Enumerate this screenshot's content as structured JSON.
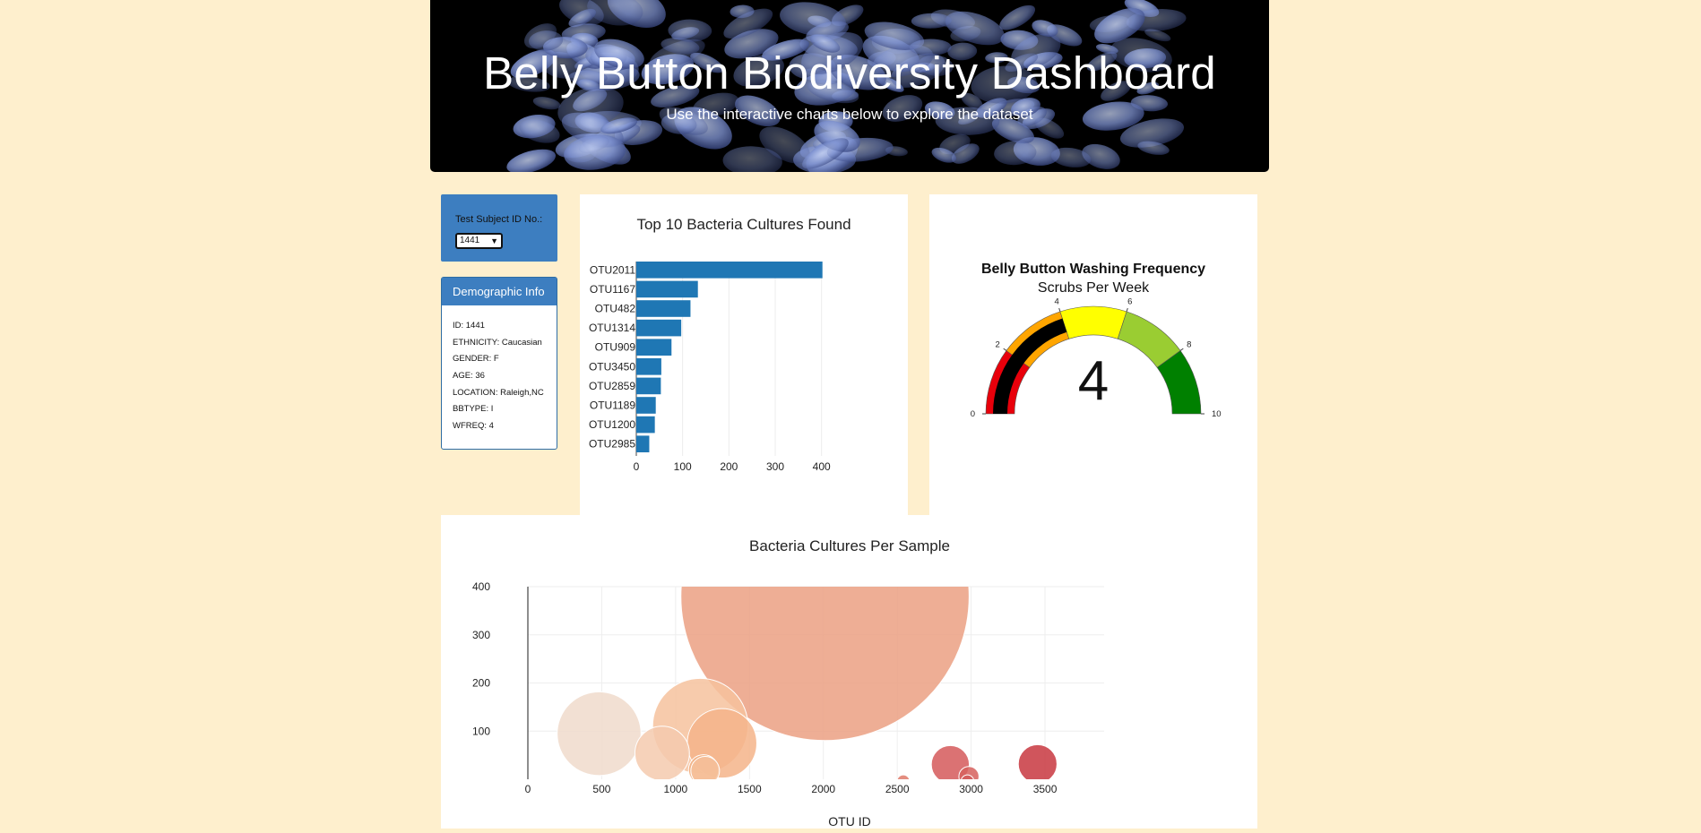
{
  "header": {
    "title": "Belly Button Biodiversity Dashboard",
    "subtitle": "Use the interactive charts below to explore the dataset"
  },
  "selector": {
    "label": "Test Subject ID No.:",
    "value": "1441"
  },
  "demographics": {
    "heading": "Demographic Info",
    "items": [
      "ID: 1441",
      "ETHNICITY: Caucasian",
      "GENDER: F",
      "AGE: 36",
      "LOCATION: Raleigh,NC",
      "BBTYPE: I",
      "WFREQ: 4"
    ]
  },
  "colors": {
    "page_bg": "#FEEFCD",
    "bar": "#1F77B4",
    "panel": "#3D7EC0"
  },
  "chart_data": [
    {
      "type": "bar",
      "orientation": "horizontal",
      "title": "Top 10 Bacteria Cultures Found",
      "categories": [
        "OTU2011",
        "OTU1167",
        "OTU482",
        "OTU1314",
        "OTU909",
        "OTU3450",
        "OTU2859",
        "OTU1189",
        "OTU1200",
        "OTU2985"
      ],
      "values": [
        402,
        133,
        117,
        97,
        76,
        54,
        53,
        42,
        40,
        28
      ],
      "xticks": [
        0,
        100,
        200,
        300,
        400
      ],
      "xlim": [
        0,
        420
      ]
    },
    {
      "type": "gauge",
      "title": "Belly Button Washing Frequency",
      "subtitle": "Scrubs Per Week",
      "value": 4,
      "range": [
        0,
        10
      ],
      "ticks": [
        0,
        2,
        4,
        6,
        8,
        10
      ],
      "steps": [
        {
          "range": [
            0,
            2
          ],
          "color": "#E8000B"
        },
        {
          "range": [
            2,
            4
          ],
          "color": "#FFA500"
        },
        {
          "range": [
            4,
            6
          ],
          "color": "#FFFF00"
        },
        {
          "range": [
            6,
            8
          ],
          "color": "#9ACD32"
        },
        {
          "range": [
            8,
            10
          ],
          "color": "#008000"
        }
      ],
      "bar_color": "#000000"
    },
    {
      "type": "scatter",
      "mode": "bubble",
      "title": "Bacteria Cultures Per Sample",
      "xlabel": "OTU ID",
      "ylabel": "",
      "xlim": [
        0,
        3900
      ],
      "ylim": [
        0,
        400
      ],
      "xticks": [
        0,
        500,
        1000,
        1500,
        2000,
        2500,
        3000,
        3500
      ],
      "yticks": [
        100,
        200,
        300,
        400
      ],
      "points": [
        {
          "x": 2011,
          "y": 402,
          "color": "#EBA083"
        },
        {
          "x": 1167,
          "y": 133,
          "color": "#F6C29E"
        },
        {
          "x": 482,
          "y": 117,
          "color": "#F0DACB"
        },
        {
          "x": 1314,
          "y": 97,
          "color": "#F4B489"
        },
        {
          "x": 909,
          "y": 76,
          "color": "#F4CAAE"
        },
        {
          "x": 3450,
          "y": 54,
          "color": "#C8373F"
        },
        {
          "x": 2859,
          "y": 53,
          "color": "#D5595A"
        },
        {
          "x": 1189,
          "y": 42,
          "color": "#F1B083"
        },
        {
          "x": 1200,
          "y": 40,
          "color": "#F6C19B"
        },
        {
          "x": 2985,
          "y": 28,
          "color": "#D6605D"
        },
        {
          "x": 2975,
          "y": 18,
          "color": "#D25A5A"
        },
        {
          "x": 2541,
          "y": 18,
          "color": "#DF7A6A"
        },
        {
          "x": 3642,
          "y": 7,
          "color": "#C53340"
        },
        {
          "x": 1210,
          "y": 8,
          "color": "#F5C29C"
        },
        {
          "x": 1108,
          "y": 7,
          "color": "#F5C09B"
        },
        {
          "x": 1340,
          "y": 6,
          "color": "#F3B68D"
        },
        {
          "x": 2761,
          "y": 6,
          "color": "#D9625D"
        },
        {
          "x": 2733,
          "y": 5,
          "color": "#D9625D"
        },
        {
          "x": 2421,
          "y": 4,
          "color": "#E07F6F"
        },
        {
          "x": 2330,
          "y": 3,
          "color": "#E3856F"
        },
        {
          "x": 2914,
          "y": 3,
          "color": "#D6605D"
        },
        {
          "x": 1980,
          "y": 3,
          "color": "#EBA083"
        },
        {
          "x": 2100,
          "y": 2,
          "color": "#E99A7E"
        },
        {
          "x": 2220,
          "y": 2,
          "color": "#E78F76"
        },
        {
          "x": 1793,
          "y": 2,
          "color": "#EEA888"
        },
        {
          "x": 833,
          "y": 2,
          "color": "#F4C8AA"
        },
        {
          "x": 800,
          "y": 2,
          "color": "#F4C8AA"
        },
        {
          "x": 3363,
          "y": 2,
          "color": "#C8373F"
        }
      ]
    }
  ]
}
